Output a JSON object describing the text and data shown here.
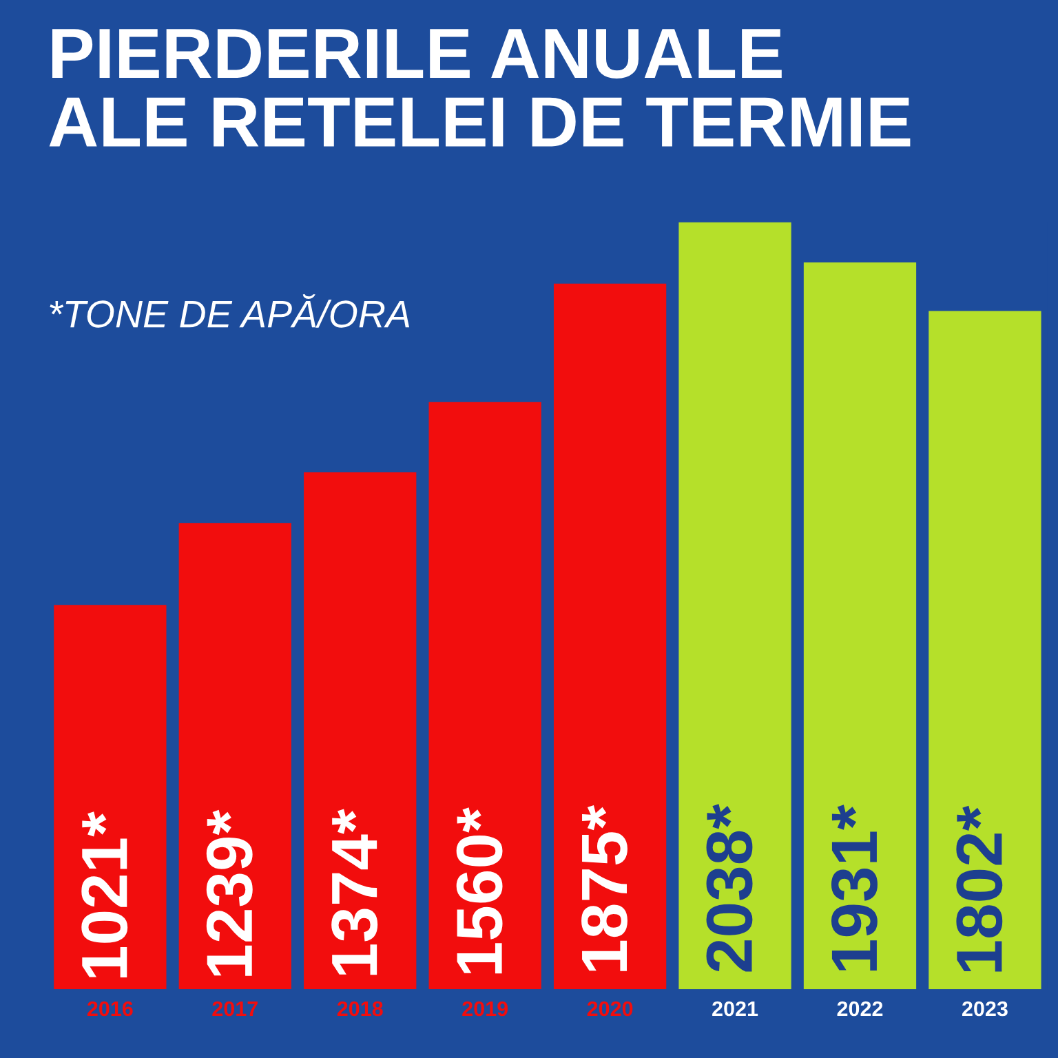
{
  "chart_data": {
    "type": "bar",
    "title": "PIERDERILE ANUALE\nALE RETELEI DE TERMIE",
    "subtitle": "*TONE DE APĂ/ORA",
    "categories": [
      "2016",
      "2017",
      "2018",
      "2019",
      "2020",
      "2021",
      "2022",
      "2023"
    ],
    "values": [
      1021,
      1239,
      1374,
      1560,
      1875,
      2038,
      1931,
      1802
    ],
    "colors": [
      "#f20d0d",
      "#f20d0d",
      "#f20d0d",
      "#f20d0d",
      "#f20d0d",
      "#b5e02a",
      "#b5e02a",
      "#b5e02a"
    ],
    "value_labels": [
      "1021*",
      "1239*",
      "1374*",
      "1560*",
      "1875*",
      "2038*",
      "1931*",
      "1802*"
    ],
    "grid": false,
    "legend": false
  }
}
